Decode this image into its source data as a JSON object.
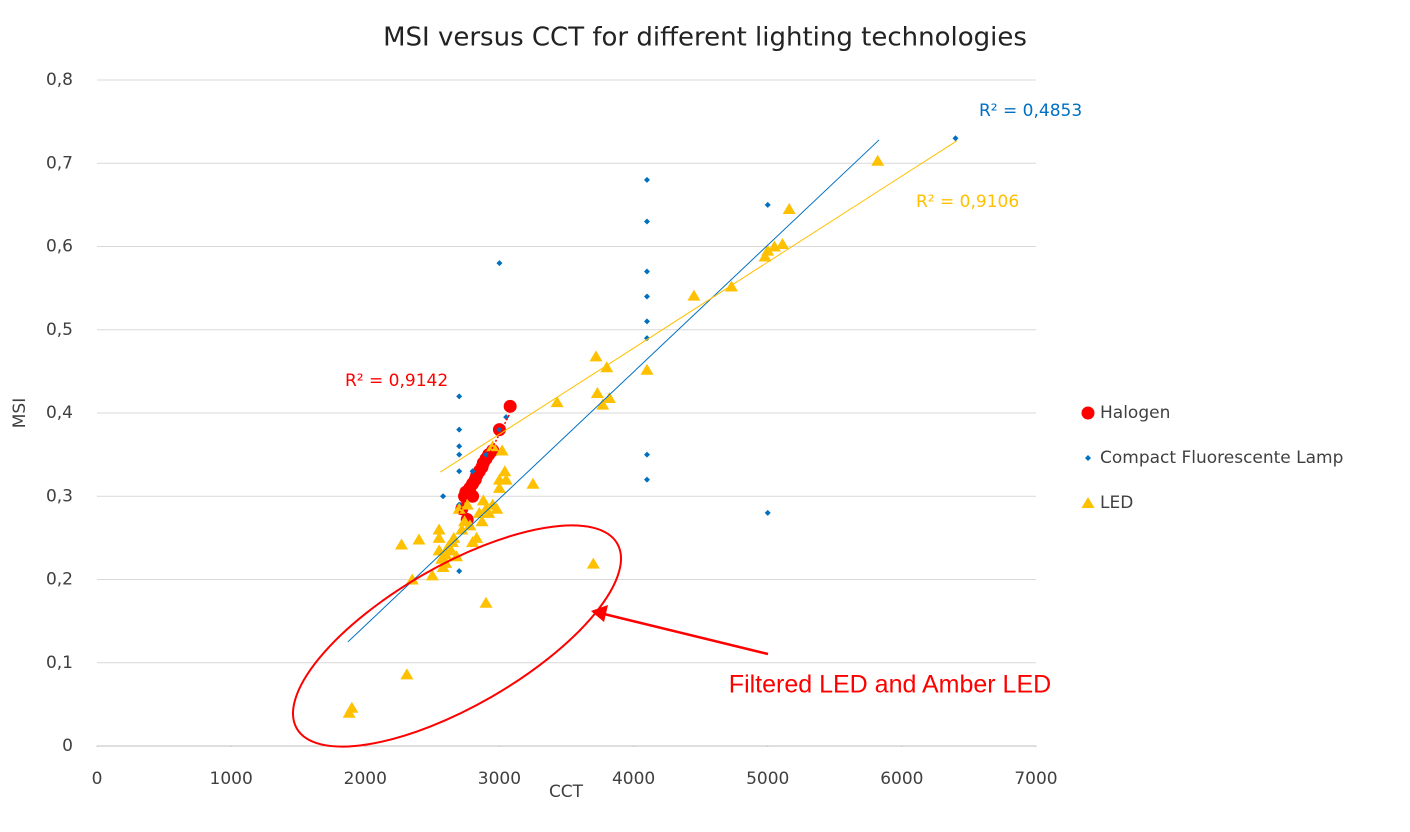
{
  "chart_data": {
    "type": "scatter",
    "title": "MSI versus CCT for different lighting technologies",
    "xlabel": "CCT",
    "ylabel": "MSI",
    "xlim": [
      0,
      7000
    ],
    "xticks": [
      0,
      1000,
      2000,
      3000,
      4000,
      5000,
      6000,
      7000
    ],
    "ylim": [
      0,
      0.8
    ],
    "yticks": [
      0,
      {
        "value": 0.1,
        "label": "0,1"
      },
      {
        "value": 0.2,
        "label": "0,2"
      },
      {
        "value": 0.3,
        "label": "0,3"
      },
      {
        "value": 0.4,
        "label": "0,4"
      },
      {
        "value": 0.5,
        "label": "0,5"
      },
      {
        "value": 0.6,
        "label": "0,6"
      },
      {
        "value": 0.7,
        "label": "0,7"
      },
      {
        "value": 0.8,
        "label": "0,8"
      }
    ],
    "grid": true,
    "legend": "right",
    "series": [
      {
        "name": "Halogen",
        "color": "#ff0000",
        "marker": "circle",
        "x": [
          2720,
          2740,
          2750,
          2760,
          2780,
          2800,
          2800,
          2820,
          2830,
          2850,
          2870,
          2880,
          2900,
          2920,
          2950,
          3000,
          3080
        ],
        "values": [
          0.285,
          0.3,
          0.305,
          0.272,
          0.31,
          0.3,
          0.315,
          0.32,
          0.325,
          0.33,
          0.335,
          0.34,
          0.345,
          0.35,
          0.355,
          0.38,
          0.408
        ],
        "trendline": {
          "x": [
            2700,
            3080
          ],
          "y": [
            0.28,
            0.4
          ],
          "label": "R² = 0,9142"
        }
      },
      {
        "name": "Compact Fluorescente Lamp",
        "color": "#0070c0",
        "marker": "diamond",
        "x": [
          2580,
          2700,
          2700,
          2700,
          2700,
          2700,
          2700,
          2700,
          2800,
          2900,
          3000,
          3000,
          3050,
          4100,
          4100,
          4100,
          4100,
          4100,
          4100,
          4100,
          4100,
          5000,
          5000,
          6400
        ],
        "values": [
          0.3,
          0.42,
          0.38,
          0.36,
          0.35,
          0.33,
          0.29,
          0.21,
          0.33,
          0.35,
          0.58,
          0.38,
          0.395,
          0.68,
          0.63,
          0.57,
          0.54,
          0.51,
          0.49,
          0.35,
          0.32,
          0.65,
          0.28,
          0.73
        ],
        "trendline": {
          "x": [
            1870,
            5830
          ],
          "y": [
            0.125,
            0.728
          ],
          "label": "R² = 0,4853"
        }
      },
      {
        "name": "LED",
        "color": "#ffc000",
        "marker": "triangle",
        "x": [
          1880,
          1900,
          2310,
          2900,
          3700,
          2350,
          2500,
          2270,
          2400,
          2550,
          2550,
          2550,
          2570,
          2580,
          2600,
          2600,
          2620,
          2640,
          2650,
          2660,
          2680,
          2700,
          2720,
          2740,
          2760,
          2780,
          2800,
          2830,
          2850,
          2870,
          2880,
          2900,
          2920,
          2950,
          2980,
          3000,
          3000,
          3020,
          3040,
          3050,
          2950,
          3250,
          3430,
          3720,
          3730,
          3770,
          3800,
          3820,
          4100,
          4450,
          4730,
          4980,
          5000,
          5050,
          5110,
          5160,
          5820
        ],
        "values": [
          0.04,
          0.046,
          0.086,
          0.172,
          0.219,
          0.2,
          0.205,
          0.242,
          0.248,
          0.26,
          0.25,
          0.235,
          0.225,
          0.215,
          0.22,
          0.23,
          0.24,
          0.235,
          0.245,
          0.25,
          0.228,
          0.285,
          0.26,
          0.27,
          0.29,
          0.265,
          0.245,
          0.25,
          0.28,
          0.27,
          0.295,
          0.285,
          0.28,
          0.29,
          0.285,
          0.31,
          0.32,
          0.355,
          0.33,
          0.32,
          0.36,
          0.315,
          0.413,
          0.468,
          0.424,
          0.41,
          0.455,
          0.418,
          0.452,
          0.541,
          0.552,
          0.588,
          0.595,
          0.6,
          0.603,
          0.645,
          0.703
        ],
        "trendline": {
          "x": [
            2560,
            6410
          ],
          "y": [
            0.329,
            0.727
          ],
          "label": "R² = 0,9106"
        }
      }
    ],
    "annotation": "Filtered LED and Amber LED"
  }
}
